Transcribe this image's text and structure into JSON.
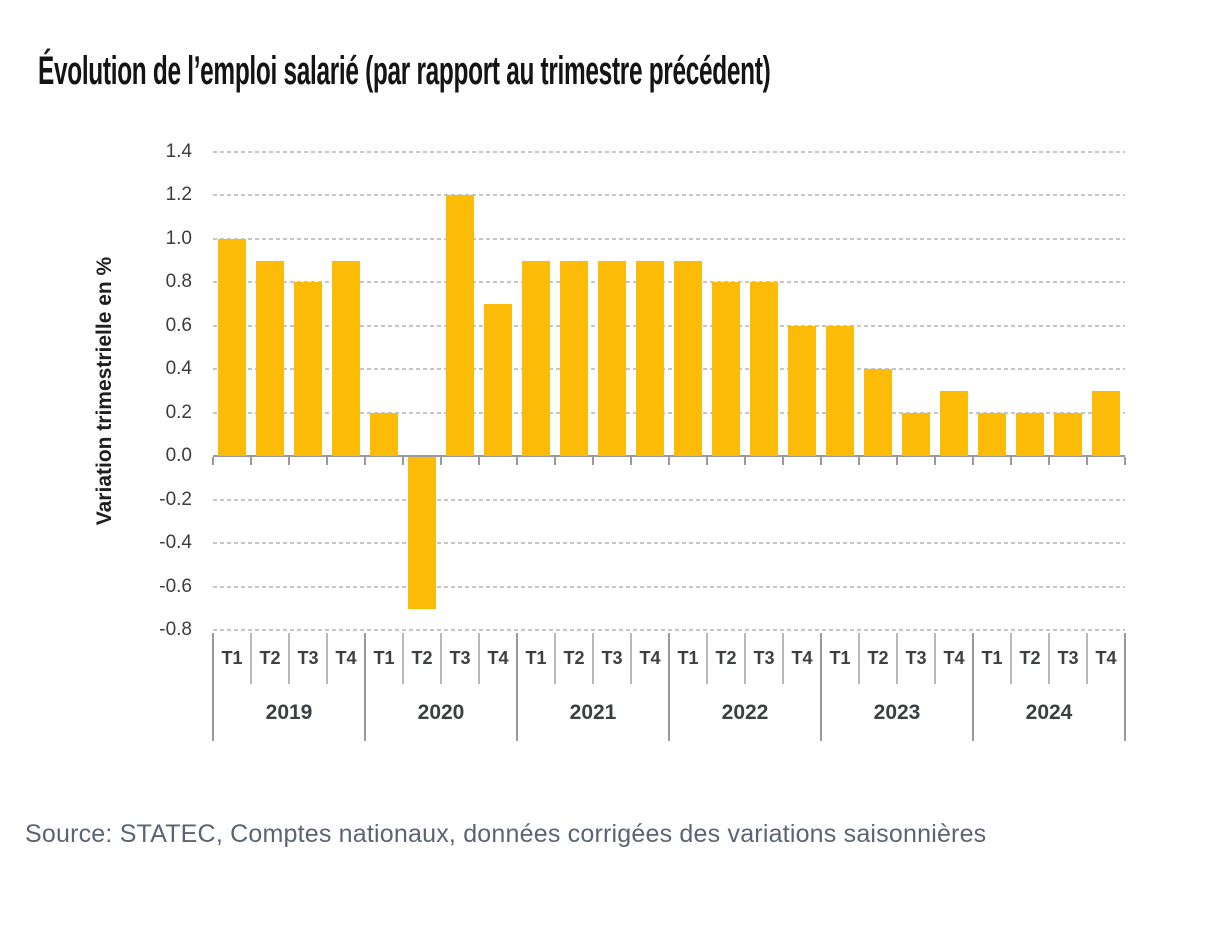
{
  "header": {
    "title": "Évolution de l’emploi salarié (par rapport au trimestre précédent)"
  },
  "footer": {
    "source": "Source: STATEC, Comptes nationaux, données corrigées des variations saisonnières"
  },
  "colors": {
    "bar": "#FCBB06",
    "gridline": "#C6C6C6",
    "axis_line": "#9A9A9A",
    "quarter_separator": "#B9B9B9",
    "axis_text": "#3C4043",
    "tick_text": "#3D3D3D",
    "title_text": "#141414",
    "source_text": "#5A6472"
  },
  "chart_data": {
    "type": "bar",
    "title": "Évolution de l’emploi salarié (par rapport au trimestre précédent)",
    "xlabel": "",
    "ylabel": "Variation trimestrielle en %",
    "ylim": [
      -0.8,
      1.4
    ],
    "ytick_step": 0.2,
    "ytick_labels": [
      "1.4",
      "1.2",
      "1.0",
      "0.8",
      "0.6",
      "0.4",
      "0.2",
      "0.0",
      "-0.2",
      "-0.4",
      "-0.6",
      "-0.8"
    ],
    "grid": "horizontal-dashed",
    "legend_position": "none",
    "bar_color": "#FCBB06",
    "quarter_labels": [
      "T1",
      "T2",
      "T3",
      "T4"
    ],
    "groups": [
      {
        "year": "2019",
        "values": [
          1.0,
          0.9,
          0.8,
          0.9
        ]
      },
      {
        "year": "2020",
        "values": [
          0.2,
          -0.7,
          1.2,
          0.7
        ]
      },
      {
        "year": "2021",
        "values": [
          0.9,
          0.9,
          0.9,
          0.9
        ]
      },
      {
        "year": "2022",
        "values": [
          0.9,
          0.8,
          0.8,
          0.6
        ]
      },
      {
        "year": "2023",
        "values": [
          0.6,
          0.4,
          0.2,
          0.3
        ]
      },
      {
        "year": "2024",
        "values": [
          0.2,
          0.2,
          0.2,
          0.3
        ]
      }
    ],
    "source": "Source: STATEC, Comptes nationaux, données corrigées des variations saisonnières"
  }
}
